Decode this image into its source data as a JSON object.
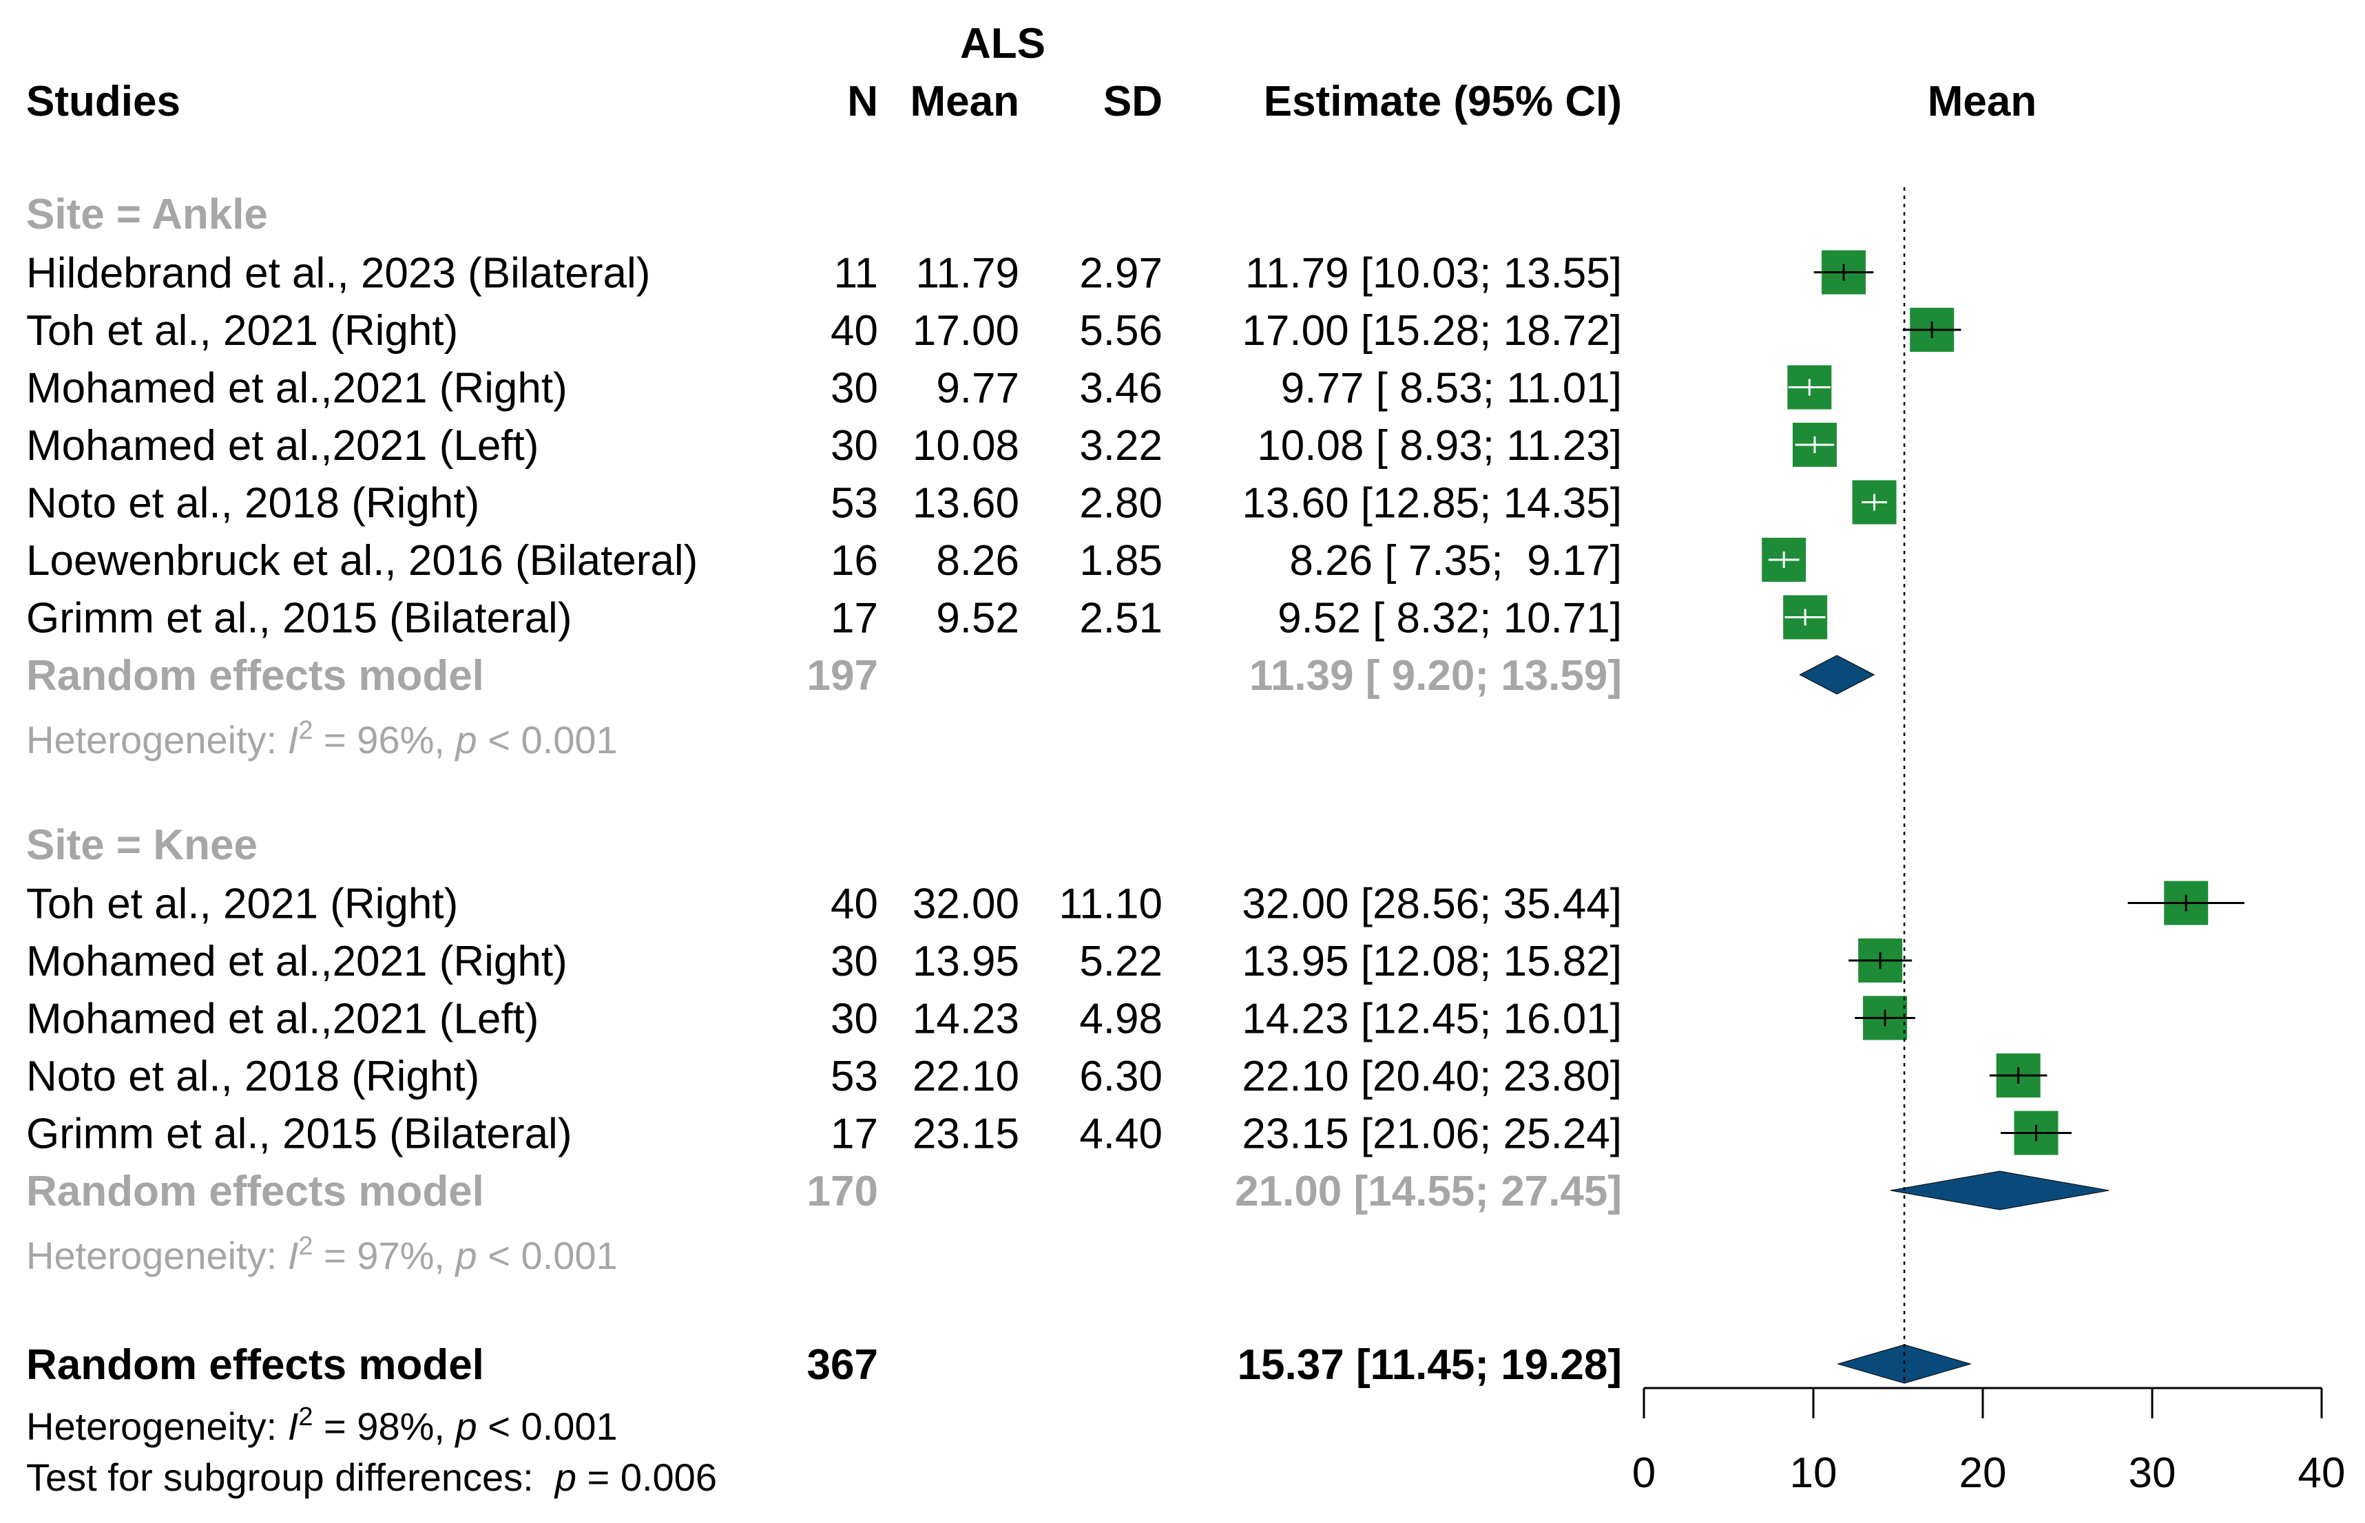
{
  "chart_data": {
    "type": "forest",
    "header": {
      "group_label": "ALS",
      "studies": "Studies",
      "n": "N",
      "mean": "Mean",
      "sd": "SD",
      "estimate": "Estimate (95% CI)",
      "plot": "Mean"
    },
    "colors": {
      "box": "#1e8c37",
      "diamond": "#0a4a7a",
      "gray_text": "#a6a6a6",
      "text": "#000000"
    },
    "xaxis": {
      "ticks": [
        "0",
        "10",
        "20",
        "30",
        "40"
      ],
      "range": [
        0,
        40
      ]
    },
    "reference_line": 15.37,
    "subgroups": [
      {
        "title": "Site = Ankle",
        "studies": [
          {
            "name": "Hildebrand et al., 2023 (Bilateral)",
            "n": "11",
            "mean": "11.79",
            "sd": "2.97",
            "estimate": "11.79 [10.03; 13.55]",
            "est": 11.79,
            "lo": 10.03,
            "hi": 13.55
          },
          {
            "name": "Toh et al., 2021 (Right)",
            "n": "40",
            "mean": "17.00",
            "sd": "5.56",
            "estimate": "17.00 [15.28; 18.72]",
            "est": 17.0,
            "lo": 15.28,
            "hi": 18.72
          },
          {
            "name": "Mohamed et al.,2021 (Right)",
            "n": "30",
            "mean": "9.77",
            "sd": "3.46",
            "estimate": "9.77 [ 8.53; 11.01]",
            "est": 9.77,
            "lo": 8.53,
            "hi": 11.01
          },
          {
            "name": "Mohamed et al.,2021 (Left)",
            "n": "30",
            "mean": "10.08",
            "sd": "3.22",
            "estimate": "10.08 [ 8.93; 11.23]",
            "est": 10.08,
            "lo": 8.93,
            "hi": 11.23
          },
          {
            "name": "Noto et al., 2018 (Right)",
            "n": "53",
            "mean": "13.60",
            "sd": "2.80",
            "estimate": "13.60 [12.85; 14.35]",
            "est": 13.6,
            "lo": 12.85,
            "hi": 14.35
          },
          {
            "name": "Loewenbruck et al., 2016 (Bilateral)",
            "n": "16",
            "mean": "8.26",
            "sd": "1.85",
            "estimate": "8.26 [ 7.35;  9.17]",
            "est": 8.26,
            "lo": 7.35,
            "hi": 9.17
          },
          {
            "name": "Grimm et al., 2015 (Bilateral)",
            "n": "17",
            "mean": "9.52",
            "sd": "2.51",
            "estimate": "9.52 [ 8.32; 10.71]",
            "est": 9.52,
            "lo": 8.32,
            "hi": 10.71
          }
        ],
        "model": {
          "label": "Random effects model",
          "n": "197",
          "estimate": "11.39 [ 9.20; 13.59]",
          "est": 11.39,
          "lo": 9.2,
          "hi": 13.59
        },
        "heterogeneity": {
          "prefix": "Heterogeneity: ",
          "i": "I",
          "sup": "2",
          "value": " = 96%, ",
          "p": "p",
          "pval": " < 0.001"
        }
      },
      {
        "title": "Site = Knee",
        "studies": [
          {
            "name": "Toh et al., 2021 (Right)",
            "n": "40",
            "mean": "32.00",
            "sd": "11.10",
            "estimate": "32.00 [28.56; 35.44]",
            "est": 32.0,
            "lo": 28.56,
            "hi": 35.44
          },
          {
            "name": "Mohamed et al.,2021 (Right)",
            "n": "30",
            "mean": "13.95",
            "sd": "5.22",
            "estimate": "13.95 [12.08; 15.82]",
            "est": 13.95,
            "lo": 12.08,
            "hi": 15.82
          },
          {
            "name": "Mohamed et al.,2021 (Left)",
            "n": "30",
            "mean": "14.23",
            "sd": "4.98",
            "estimate": "14.23 [12.45; 16.01]",
            "est": 14.23,
            "lo": 12.45,
            "hi": 16.01
          },
          {
            "name": "Noto et al., 2018 (Right)",
            "n": "53",
            "mean": "22.10",
            "sd": "6.30",
            "estimate": "22.10 [20.40; 23.80]",
            "est": 22.1,
            "lo": 20.4,
            "hi": 23.8
          },
          {
            "name": "Grimm et al., 2015 (Bilateral)",
            "n": "17",
            "mean": "23.15",
            "sd": "4.40",
            "estimate": "23.15 [21.06; 25.24]",
            "est": 23.15,
            "lo": 21.06,
            "hi": 25.24
          }
        ],
        "model": {
          "label": "Random effects model",
          "n": "170",
          "estimate": "21.00 [14.55; 27.45]",
          "est": 21.0,
          "lo": 14.55,
          "hi": 27.45
        },
        "heterogeneity": {
          "prefix": "Heterogeneity: ",
          "i": "I",
          "sup": "2",
          "value": " = 97%, ",
          "p": "p",
          "pval": " < 0.001"
        }
      }
    ],
    "overall": {
      "label": "Random effects model",
      "n": "367",
      "estimate": "15.37 [11.45; 19.28]",
      "est": 15.37,
      "lo": 11.45,
      "hi": 19.28,
      "heterogeneity": {
        "prefix": "Heterogeneity: ",
        "i": "I",
        "sup": "2",
        "value": " = 98%, ",
        "p": "p",
        "pval": " < 0.001"
      },
      "subgroup_test": {
        "prefix": "Test for subgroup differences:  ",
        "p": "p",
        "pval": " = 0.006"
      }
    }
  }
}
